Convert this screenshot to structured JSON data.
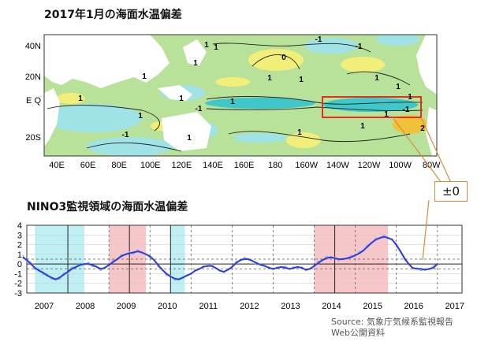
{
  "sst_map": {
    "title": "2017年1月の海面水温偏差",
    "lat_labels": [
      "40N",
      "20N",
      "E Q",
      "20S"
    ],
    "lon_labels": [
      "40E",
      "60E",
      "80E",
      "100E",
      "120E",
      "140E",
      "160E",
      "180",
      "160W",
      "140W",
      "120W",
      "100W",
      "80W"
    ],
    "contour_labels": [
      "-1",
      "-1",
      "1",
      "1",
      "1",
      "1",
      "1",
      "-1",
      "1",
      "1",
      "1",
      "0",
      "1",
      "-1",
      "1",
      "1",
      "1",
      "1",
      "-1",
      "2",
      "1",
      "1",
      "1",
      "1"
    ],
    "colors": {
      "neg_strong": "#3fc7c9",
      "neg": "#9fe3e6",
      "neutral": "#b8e29a",
      "pos": "#f2ee7a",
      "pos_strong": "#f0c23a",
      "land": "#ffffff",
      "highlight": "#e03020",
      "callout": "#e08a3a"
    }
  },
  "nino3": {
    "title": "NINO3監視領域の海面水温偏差",
    "callout": "±0"
  },
  "source": "Source: 気象庁気候系監視報告\nWeb公開資料",
  "chart_data": {
    "type": "line",
    "title": "NINO3監視領域の海面水温偏差",
    "x_label": "",
    "y_label": "",
    "ylim": [
      -3,
      4
    ],
    "yticks": [
      -3,
      -2,
      -1,
      0,
      1,
      2,
      3,
      4
    ],
    "year_labels": [
      "2007",
      "2008",
      "2009",
      "2010",
      "2011",
      "2012",
      "2013",
      "2014",
      "2015",
      "2016",
      "2017"
    ],
    "xlim": [
      2007.0,
      2017.6
    ],
    "grid": "dashed vertical yearly lines; horizontal lines at ±0.5",
    "la_nina_periods": [
      [
        2007.2,
        2007.75
      ],
      [
        2007.75,
        2008.4
      ],
      [
        2010.5,
        2010.85
      ]
    ],
    "el_nino_periods": [
      [
        2009.0,
        2009.5
      ],
      [
        2009.5,
        2009.9
      ],
      [
        2014.0,
        2015.0
      ],
      [
        2015.0,
        2015.8
      ]
    ],
    "dashed_markers": [
      2008.0,
      2009.5,
      2010.5,
      2014.5
    ],
    "series": [
      {
        "name": "",
        "color": "#2a3fd6",
        "x": [
          2006.9,
          2007.0,
          2007.1,
          2007.2,
          2007.3,
          2007.4,
          2007.5,
          2007.6,
          2007.7,
          2007.8,
          2007.9,
          2008.0,
          2008.1,
          2008.2,
          2008.3,
          2008.4,
          2008.5,
          2008.6,
          2008.7,
          2008.8,
          2008.9,
          2009.0,
          2009.1,
          2009.2,
          2009.3,
          2009.4,
          2009.5,
          2009.6,
          2009.7,
          2009.8,
          2009.9,
          2010.0,
          2010.1,
          2010.2,
          2010.3,
          2010.4,
          2010.5,
          2010.6,
          2010.7,
          2010.8,
          2010.9,
          2011.0,
          2011.1,
          2011.2,
          2011.3,
          2011.4,
          2011.5,
          2011.6,
          2011.7,
          2011.8,
          2011.9,
          2012.0,
          2012.1,
          2012.2,
          2012.3,
          2012.4,
          2012.5,
          2012.6,
          2012.7,
          2012.8,
          2012.9,
          2013.0,
          2013.1,
          2013.2,
          2013.3,
          2013.4,
          2013.5,
          2013.6,
          2013.7,
          2013.8,
          2013.9,
          2014.0,
          2014.1,
          2014.2,
          2014.3,
          2014.4,
          2014.5,
          2014.6,
          2014.7,
          2014.8,
          2014.9,
          2015.0,
          2015.1,
          2015.2,
          2015.3,
          2015.4,
          2015.5,
          2015.6,
          2015.7,
          2015.8,
          2015.9,
          2016.0,
          2016.1,
          2016.2,
          2016.3,
          2016.4,
          2016.5,
          2016.6,
          2016.7,
          2016.8,
          2016.9,
          2017.0
        ],
        "y": [
          0.7,
          0.4,
          0.0,
          -0.4,
          -0.7,
          -0.9,
          -1.2,
          -1.4,
          -1.6,
          -1.4,
          -1.1,
          -0.8,
          -0.5,
          -0.3,
          -0.1,
          0.0,
          0.0,
          -0.1,
          -0.3,
          -0.5,
          -0.4,
          -0.1,
          0.2,
          0.5,
          0.8,
          1.0,
          1.1,
          1.2,
          1.3,
          1.2,
          1.0,
          0.8,
          0.4,
          -0.1,
          -0.6,
          -1.0,
          -1.3,
          -1.5,
          -1.6,
          -1.4,
          -1.2,
          -1.0,
          -0.7,
          -0.5,
          -0.3,
          -0.2,
          -0.2,
          -0.4,
          -0.7,
          -0.8,
          -0.6,
          -0.3,
          0.1,
          0.4,
          0.5,
          0.5,
          0.3,
          0.1,
          -0.1,
          -0.2,
          -0.4,
          -0.5,
          -0.4,
          -0.3,
          -0.4,
          -0.5,
          -0.4,
          -0.3,
          -0.4,
          -0.6,
          -0.5,
          -0.2,
          0.1,
          0.4,
          0.6,
          0.7,
          0.6,
          0.5,
          0.5,
          0.6,
          0.7,
          0.9,
          1.1,
          1.4,
          1.8,
          2.2,
          2.5,
          2.7,
          2.8,
          2.7,
          2.5,
          2.0,
          1.3,
          0.6,
          0.0,
          -0.4,
          -0.5,
          -0.5,
          -0.6,
          -0.5,
          -0.4,
          0.0
        ]
      },
      {
        "name": "",
        "color": "#9aa6f2",
        "x": [
          2006.9,
          2007.0,
          2007.1,
          2007.2,
          2007.3,
          2007.4,
          2007.5,
          2007.6,
          2007.7,
          2007.8,
          2007.9,
          2008.0,
          2008.1,
          2008.2,
          2008.3,
          2008.4,
          2008.5,
          2008.6,
          2008.7,
          2008.8,
          2008.9,
          2009.0,
          2009.1,
          2009.2,
          2009.3,
          2009.4,
          2009.5,
          2009.6,
          2009.7,
          2009.8,
          2009.9,
          2010.0,
          2010.1,
          2010.2,
          2010.3,
          2010.4,
          2010.5,
          2010.6,
          2010.7,
          2010.8,
          2010.9,
          2011.0,
          2011.1,
          2011.2,
          2011.3,
          2011.4,
          2011.5,
          2011.6,
          2011.7,
          2011.8,
          2011.9,
          2012.0,
          2012.1,
          2012.2,
          2012.3,
          2012.4,
          2012.5,
          2012.6,
          2012.7,
          2012.8,
          2012.9,
          2013.0,
          2013.1,
          2013.2,
          2013.3,
          2013.4,
          2013.5,
          2013.6,
          2013.7,
          2013.8,
          2013.9,
          2014.0,
          2014.1,
          2014.2,
          2014.3,
          2014.4,
          2014.5,
          2014.6,
          2014.7,
          2014.8,
          2014.9,
          2015.0,
          2015.1,
          2015.2,
          2015.3,
          2015.4,
          2015.5,
          2015.6,
          2015.7,
          2015.8,
          2015.9,
          2016.0,
          2016.1,
          2016.2,
          2016.3,
          2016.4,
          2016.5,
          2016.6,
          2016.7,
          2016.8,
          2016.9,
          2017.0
        ],
        "y": [
          0.9,
          0.3,
          0.2,
          -0.6,
          -0.5,
          -1.1,
          -1.0,
          -1.6,
          -1.5,
          -1.6,
          -0.9,
          -1.0,
          -0.3,
          -0.4,
          0.1,
          -0.1,
          0.2,
          -0.3,
          -0.2,
          -0.7,
          -0.3,
          -0.2,
          0.4,
          0.4,
          1.0,
          0.9,
          1.3,
          1.0,
          1.5,
          1.1,
          1.1,
          0.6,
          0.5,
          -0.3,
          -0.5,
          -1.2,
          -1.2,
          -1.7,
          -1.5,
          -1.5,
          -1.1,
          -1.1,
          -0.6,
          -0.6,
          -0.2,
          -0.3,
          0.0,
          -0.5,
          -0.6,
          -0.9,
          -0.5,
          -0.4,
          0.3,
          0.3,
          0.7,
          0.4,
          0.4,
          -0.1,
          0.0,
          -0.3,
          -0.3,
          -0.6,
          -0.3,
          -0.4,
          -0.2,
          -0.6,
          -0.3,
          -0.4,
          -0.3,
          -0.7,
          -0.4,
          -0.3,
          0.3,
          0.3,
          0.8,
          0.6,
          0.7,
          0.3,
          0.6,
          0.5,
          0.9,
          0.8,
          1.3,
          1.3,
          2.0,
          2.1,
          2.7,
          2.6,
          3.0,
          2.6,
          2.6,
          1.8,
          1.4,
          0.4,
          0.1,
          -0.5,
          -0.4,
          -0.7,
          -0.5,
          -0.6,
          -0.2,
          -0.1
        ]
      }
    ]
  }
}
